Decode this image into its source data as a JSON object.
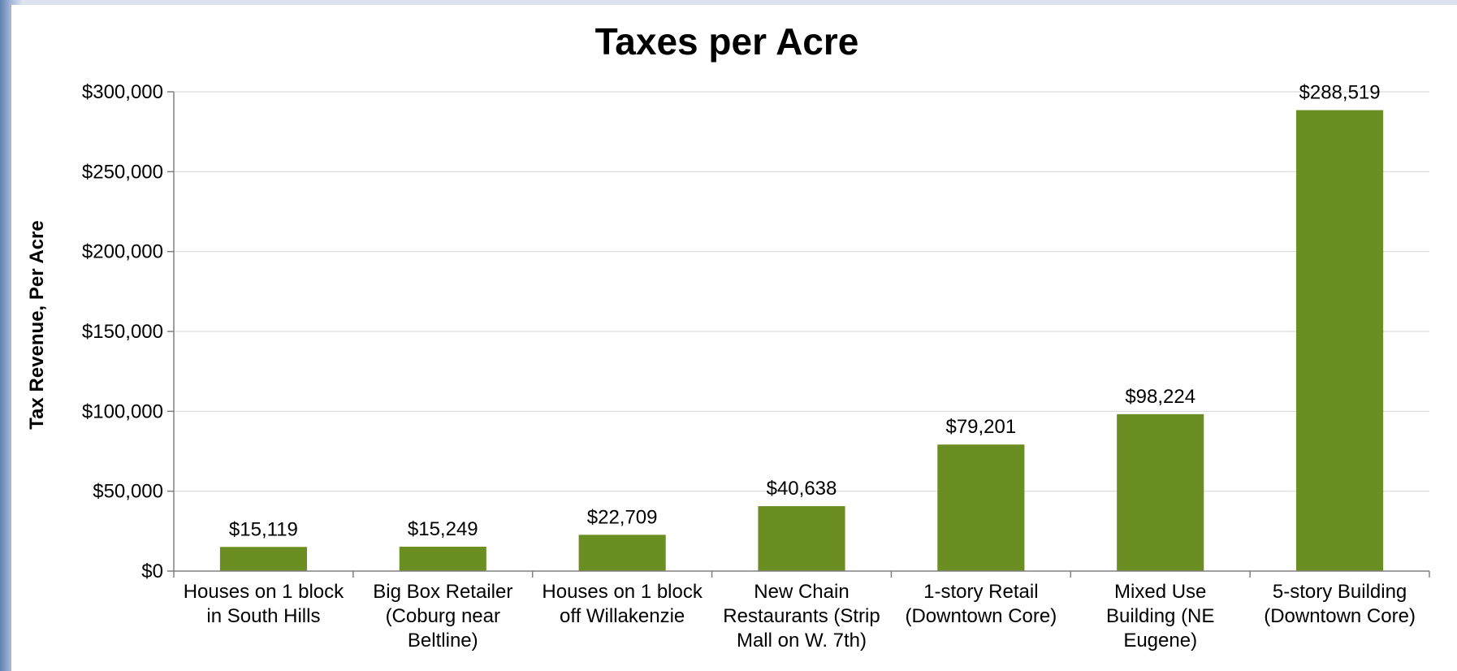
{
  "chart_data": {
    "type": "bar",
    "title": "Taxes per Acre",
    "xlabel": "",
    "ylabel": "Tax Revenue, Per Acre",
    "categories": [
      [
        "Houses on 1 block",
        "in South Hills"
      ],
      [
        "Big Box Retailer",
        "(Coburg near",
        "Beltline)"
      ],
      [
        "Houses on 1 block",
        "off Willakenzie"
      ],
      [
        "New Chain",
        "Restaurants (Strip",
        "Mall on W. 7th)"
      ],
      [
        "1-story Retail",
        "(Downtown Core)"
      ],
      [
        "Mixed Use",
        "Building (NE",
        "Eugene)"
      ],
      [
        "5-story Building",
        "(Downtown Core)"
      ]
    ],
    "values": [
      15119,
      15249,
      22709,
      40638,
      79201,
      98224,
      288519
    ],
    "data_labels": [
      "$15,119",
      "$15,249",
      "$22,709",
      "$40,638",
      "$79,201",
      "$98,224",
      "$288,519"
    ],
    "ylim": [
      0,
      300000
    ],
    "yticks": [
      0,
      50000,
      100000,
      150000,
      200000,
      250000,
      300000
    ],
    "ytick_labels": [
      "$0",
      "$50,000",
      "$100,000",
      "$150,000",
      "$200,000",
      "$250,000",
      "$300,000"
    ],
    "grid": true,
    "legend": "none",
    "colors": {
      "bar": "#6b8e23",
      "grid": "#d9d9d9",
      "axis": "#808080"
    }
  }
}
